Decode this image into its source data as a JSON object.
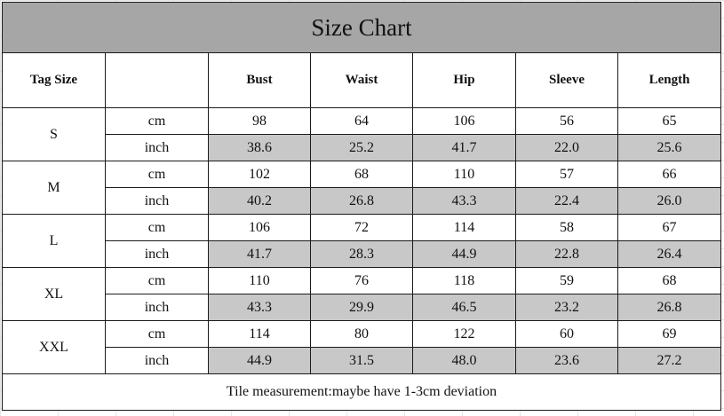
{
  "title": "Size Chart",
  "headers": {
    "tag_size": "Tag Size",
    "unit": "",
    "columns": [
      "Bust",
      "Waist",
      "Hip",
      "Sleeve",
      "Length"
    ]
  },
  "rows": [
    {
      "size": "S",
      "cm_label": "cm",
      "inch_label": "inch",
      "cm": [
        "98",
        "64",
        "106",
        "56",
        "65"
      ],
      "inch": [
        "38.6",
        "25.2",
        "41.7",
        "22.0",
        "25.6"
      ]
    },
    {
      "size": "M",
      "cm_label": "cm",
      "inch_label": "inch",
      "cm": [
        "102",
        "68",
        "110",
        "57",
        "66"
      ],
      "inch": [
        "40.2",
        "26.8",
        "43.3",
        "22.4",
        "26.0"
      ]
    },
    {
      "size": "L",
      "cm_label": "cm",
      "inch_label": "inch",
      "cm": [
        "106",
        "72",
        "114",
        "58",
        "67"
      ],
      "inch": [
        "41.7",
        "28.3",
        "44.9",
        "22.8",
        "26.4"
      ]
    },
    {
      "size": "XL",
      "cm_label": "cm",
      "inch_label": "inch",
      "cm": [
        "110",
        "76",
        "118",
        "59",
        "68"
      ],
      "inch": [
        "43.3",
        "29.9",
        "46.5",
        "23.2",
        "26.8"
      ]
    },
    {
      "size": "XXL",
      "cm_label": "cm",
      "inch_label": "inch",
      "cm": [
        "114",
        "80",
        "122",
        "60",
        "69"
      ],
      "inch": [
        "44.9",
        "31.5",
        "48.0",
        "23.6",
        "27.2"
      ]
    }
  ],
  "footer": "Tile measurement:maybe have 1-3cm deviation",
  "colors": {
    "title_bg": "#a6a6a6",
    "inch_bg": "#c8c8c8",
    "border": "#1a1a1a"
  }
}
